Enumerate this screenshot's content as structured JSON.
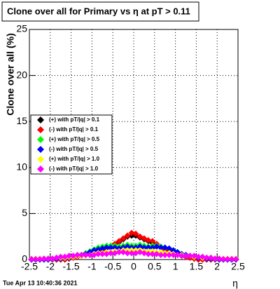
{
  "chart_data": {
    "type": "scatter",
    "title": "Clone  over all for Primary vs  η at pT > 0.11",
    "y_label": "Clone  over all (%)",
    "x_label": "η",
    "footer": "Tue Apr 13 10:40:36 2021",
    "xlim": [
      -2.5,
      2.5
    ],
    "ylim": [
      0,
      25
    ],
    "xticks": [
      -2.5,
      -2,
      -1.5,
      -1,
      -0.5,
      0,
      0.5,
      1,
      1.5,
      2,
      2.5
    ],
    "yticks": [
      0,
      5,
      10,
      15,
      20,
      25
    ],
    "grid": true,
    "x": [
      -2.45,
      -2.35,
      -2.25,
      -2.15,
      -2.05,
      -1.95,
      -1.85,
      -1.75,
      -1.65,
      -1.55,
      -1.45,
      -1.35,
      -1.25,
      -1.15,
      -1.05,
      -0.95,
      -0.85,
      -0.75,
      -0.65,
      -0.55,
      -0.45,
      -0.35,
      -0.25,
      -0.15,
      -0.05,
      0.05,
      0.15,
      0.25,
      0.35,
      0.45,
      0.55,
      0.65,
      0.75,
      0.85,
      0.95,
      1.05,
      1.15,
      1.25,
      1.35,
      1.45,
      1.55,
      1.65,
      1.75,
      1.85,
      1.95,
      2.05,
      2.15,
      2.25,
      2.35,
      2.45
    ],
    "series": [
      {
        "name": "(+) with pT/|q| > 0.1",
        "color": "#000000",
        "values": [
          0,
          0,
          0,
          0,
          0,
          0,
          0,
          0,
          0,
          0.1,
          0.2,
          0.3,
          0.4,
          0.5,
          0.7,
          0.8,
          1.0,
          1.2,
          1.3,
          1.5,
          1.7,
          1.9,
          2.2,
          2.5,
          2.6,
          2.6,
          2.4,
          2.2,
          2.0,
          1.8,
          1.5,
          1.3,
          1.1,
          0.9,
          0.8,
          0.6,
          0.4,
          0.3,
          0.2,
          0.1,
          0,
          0,
          0,
          0,
          0,
          0,
          0,
          0,
          0,
          0
        ]
      },
      {
        "name": "(-) with pT/|q| > 0.1",
        "color": "#ff0000",
        "values": [
          0,
          0,
          0,
          0,
          0,
          0,
          0,
          0,
          0,
          0.1,
          0.2,
          0.3,
          0.4,
          0.5,
          0.6,
          0.8,
          0.9,
          1.0,
          1.2,
          1.4,
          1.7,
          2.0,
          2.3,
          2.6,
          2.9,
          2.8,
          2.5,
          2.3,
          2.1,
          2.0,
          1.7,
          1.4,
          1.1,
          0.9,
          0.7,
          0.5,
          0.4,
          0.3,
          0.2,
          0.1,
          0,
          0,
          0,
          0,
          0,
          0,
          0,
          0,
          0,
          0
        ]
      },
      {
        "name": "(+) with pT/|q| > 0.5",
        "color": "#00ff00",
        "values": [
          0,
          0,
          0,
          0,
          0,
          0.05,
          0.1,
          0.1,
          0.2,
          0.2,
          0.3,
          0.4,
          0.5,
          0.7,
          0.9,
          1.1,
          1.3,
          1.4,
          1.5,
          1.5,
          1.5,
          1.4,
          1.5,
          1.6,
          1.5,
          1.5,
          1.6,
          1.5,
          1.4,
          1.5,
          1.5,
          1.4,
          1.3,
          1.2,
          1.0,
          0.8,
          0.6,
          0.5,
          0.4,
          0.3,
          0.2,
          0.2,
          0.1,
          0.1,
          0.05,
          0,
          0,
          0,
          0,
          0
        ]
      },
      {
        "name": "(-) with pT/|q| > 0.5",
        "color": "#0000ff",
        "values": [
          0,
          0,
          0,
          0,
          0,
          0.05,
          0.1,
          0.1,
          0.15,
          0.2,
          0.3,
          0.4,
          0.5,
          0.6,
          0.8,
          1.0,
          1.1,
          1.2,
          1.3,
          1.3,
          1.3,
          1.2,
          1.3,
          1.4,
          1.3,
          1.3,
          1.4,
          1.3,
          1.3,
          1.3,
          1.4,
          1.3,
          1.3,
          1.2,
          1.0,
          0.8,
          0.6,
          0.5,
          0.4,
          0.3,
          0.2,
          0.2,
          0.1,
          0.1,
          0.05,
          0,
          0,
          0,
          0,
          0
        ]
      },
      {
        "name": "(+) with pT/|q| > 1.0",
        "color": "#ffff00",
        "values": [
          0.1,
          0.1,
          0.1,
          0.1,
          0.1,
          0.1,
          0.2,
          0.2,
          0.2,
          0.3,
          0.3,
          0.4,
          0.4,
          0.5,
          0.5,
          0.6,
          0.7,
          0.7,
          0.8,
          0.8,
          0.9,
          0.9,
          1.0,
          1.0,
          1.0,
          1.0,
          1.0,
          0.9,
          0.9,
          0.9,
          0.8,
          0.8,
          0.7,
          0.7,
          0.6,
          0.5,
          0.5,
          0.4,
          0.4,
          0.3,
          0.3,
          0.2,
          0.2,
          0.2,
          0.1,
          0.1,
          0.1,
          0.1,
          0.1,
          0.1
        ]
      },
      {
        "name": "(-) with pT/|q| > 1.0",
        "color": "#ff00ff",
        "values": [
          0.05,
          0.05,
          0.05,
          0.1,
          0.1,
          0.1,
          0.2,
          0.3,
          0.3,
          0.4,
          0.4,
          0.5,
          0.5,
          0.5,
          0.5,
          0.5,
          0.6,
          0.6,
          0.6,
          0.7,
          0.7,
          0.8,
          0.8,
          0.7,
          0.7,
          0.7,
          0.8,
          0.7,
          0.6,
          0.6,
          0.6,
          0.5,
          0.5,
          0.5,
          0.5,
          0.5,
          0.4,
          0.4,
          0.4,
          0.4,
          0.3,
          0.3,
          0.2,
          0.2,
          0.1,
          0.1,
          0.05,
          0.05,
          0.05,
          0.05
        ]
      }
    ]
  }
}
